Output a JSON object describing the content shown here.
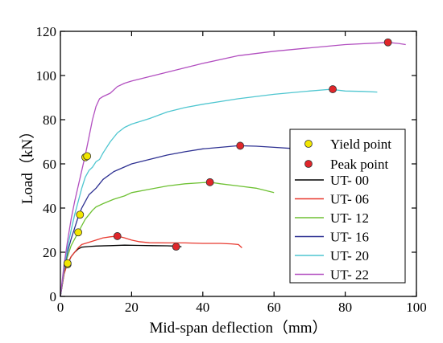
{
  "chart_data": {
    "type": "line",
    "xlabel": "Mid-span deflection（mm）",
    "ylabel": "Load（kN）",
    "xlim": [
      0,
      100
    ],
    "ylim": [
      0,
      120
    ],
    "xticks": [
      0,
      20,
      40,
      60,
      80,
      100
    ],
    "yticks": [
      0,
      20,
      40,
      60,
      80,
      100,
      120
    ],
    "grid": false,
    "legend_position": "right",
    "marker_legend": [
      {
        "label": "Yield point",
        "color": "#f2e600"
      },
      {
        "label": "Peak  point",
        "color": "#e0262a"
      }
    ],
    "series": [
      {
        "name": "UT- 00",
        "color": "#000000",
        "points": [
          [
            0,
            0
          ],
          [
            0.5,
            5
          ],
          [
            1,
            10
          ],
          [
            1.5,
            13
          ],
          [
            2,
            14.5
          ],
          [
            3,
            18
          ],
          [
            4,
            20
          ],
          [
            5,
            21.5
          ],
          [
            6,
            22.3
          ],
          [
            8,
            22.6
          ],
          [
            10,
            22.8
          ],
          [
            14,
            23
          ],
          [
            18,
            23.2
          ],
          [
            22,
            23.1
          ],
          [
            26,
            23
          ],
          [
            30,
            22.9
          ],
          [
            32,
            22.8
          ],
          [
            34,
            22.5
          ]
        ],
        "yield": [
          2,
          14.5
        ],
        "peak": [
          32.5,
          22.5
        ]
      },
      {
        "name": "UT- 06",
        "color": "#e8392f",
        "points": [
          [
            0,
            0
          ],
          [
            1,
            10
          ],
          [
            2,
            15
          ],
          [
            3,
            18
          ],
          [
            4,
            20
          ],
          [
            5,
            22
          ],
          [
            6,
            23.5
          ],
          [
            8,
            24.5
          ],
          [
            10,
            25.5
          ],
          [
            12,
            26.5
          ],
          [
            14,
            27
          ],
          [
            16,
            27.3
          ],
          [
            18,
            26.5
          ],
          [
            20,
            25.5
          ],
          [
            22,
            24.8
          ],
          [
            25,
            24.3
          ],
          [
            30,
            24.2
          ],
          [
            35,
            24.2
          ],
          [
            40,
            24
          ],
          [
            45,
            24
          ],
          [
            48,
            23.8
          ],
          [
            50,
            23.5
          ],
          [
            51,
            22
          ]
        ],
        "yield": [
          2,
          15
        ],
        "peak": [
          16,
          27.3
        ]
      },
      {
        "name": "UT- 12",
        "color": "#6ec133",
        "points": [
          [
            0,
            0
          ],
          [
            1,
            12
          ],
          [
            2,
            18
          ],
          [
            3,
            23
          ],
          [
            4,
            26
          ],
          [
            5,
            29
          ],
          [
            6,
            32
          ],
          [
            7,
            35
          ],
          [
            8,
            37
          ],
          [
            9,
            39
          ],
          [
            10,
            40.5
          ],
          [
            12,
            42
          ],
          [
            15,
            44
          ],
          [
            18,
            45.5
          ],
          [
            20,
            47
          ],
          [
            25,
            48.5
          ],
          [
            30,
            50
          ],
          [
            35,
            51
          ],
          [
            40,
            51.5
          ],
          [
            42,
            51.7
          ],
          [
            45,
            51
          ],
          [
            50,
            50
          ],
          [
            55,
            49
          ],
          [
            60,
            47
          ]
        ],
        "yield": [
          5,
          29
        ],
        "peak": [
          42,
          51.7
        ]
      },
      {
        "name": "UT- 16",
        "color": "#2e3192",
        "points": [
          [
            0,
            0
          ],
          [
            1,
            12
          ],
          [
            2,
            20
          ],
          [
            3,
            26
          ],
          [
            4,
            31
          ],
          [
            5,
            36
          ],
          [
            6,
            40
          ],
          [
            7,
            43
          ],
          [
            8,
            46
          ],
          [
            10,
            49
          ],
          [
            12,
            53
          ],
          [
            15,
            56.5
          ],
          [
            20,
            60
          ],
          [
            25,
            62
          ],
          [
            30,
            64
          ],
          [
            35,
            65.5
          ],
          [
            40,
            66.8
          ],
          [
            45,
            67.5
          ],
          [
            50,
            68.2
          ],
          [
            55,
            68
          ],
          [
            60,
            67.5
          ],
          [
            65,
            67
          ],
          [
            68,
            66.8
          ]
        ],
        "yield": [
          5.5,
          37
        ],
        "peak": [
          50.5,
          68.2
        ]
      },
      {
        "name": "UT- 20",
        "color": "#4fc6d0",
        "points": [
          [
            0,
            0
          ],
          [
            1,
            12
          ],
          [
            2,
            22
          ],
          [
            3,
            30
          ],
          [
            4,
            37
          ],
          [
            5,
            43
          ],
          [
            6,
            49
          ],
          [
            7,
            54
          ],
          [
            8,
            57
          ],
          [
            9,
            58.5
          ],
          [
            10,
            61
          ],
          [
            11,
            62
          ],
          [
            12,
            65
          ],
          [
            14,
            70
          ],
          [
            16,
            74
          ],
          [
            18,
            76.5
          ],
          [
            20,
            78
          ],
          [
            25,
            80.5
          ],
          [
            30,
            83.5
          ],
          [
            35,
            85.5
          ],
          [
            40,
            87
          ],
          [
            50,
            89.5
          ],
          [
            60,
            91.5
          ],
          [
            70,
            93
          ],
          [
            76,
            93.8
          ],
          [
            80,
            93
          ],
          [
            85,
            92.8
          ],
          [
            89,
            92.5
          ]
        ],
        "yield": [
          7,
          63
        ],
        "peak": [
          76.5,
          93.8
        ]
      },
      {
        "name": "UT- 22",
        "color": "#b24fc0",
        "points": [
          [
            0,
            0
          ],
          [
            1,
            14
          ],
          [
            2,
            25
          ],
          [
            3,
            35
          ],
          [
            4,
            43
          ],
          [
            5,
            50
          ],
          [
            6,
            57
          ],
          [
            7,
            64
          ],
          [
            8,
            72
          ],
          [
            9,
            80
          ],
          [
            10,
            86
          ],
          [
            11,
            89.5
          ],
          [
            12,
            90.5
          ],
          [
            14,
            92
          ],
          [
            16,
            95
          ],
          [
            18,
            96.5
          ],
          [
            20,
            97.5
          ],
          [
            25,
            99.5
          ],
          [
            30,
            101.5
          ],
          [
            35,
            103.5
          ],
          [
            40,
            105.5
          ],
          [
            50,
            109
          ],
          [
            60,
            111
          ],
          [
            70,
            112.5
          ],
          [
            80,
            114
          ],
          [
            90,
            114.8
          ],
          [
            92,
            115
          ],
          [
            95,
            114.5
          ],
          [
            97,
            114
          ]
        ],
        "yield": [
          7.5,
          63.5
        ],
        "peak": [
          92,
          115
        ]
      }
    ]
  }
}
